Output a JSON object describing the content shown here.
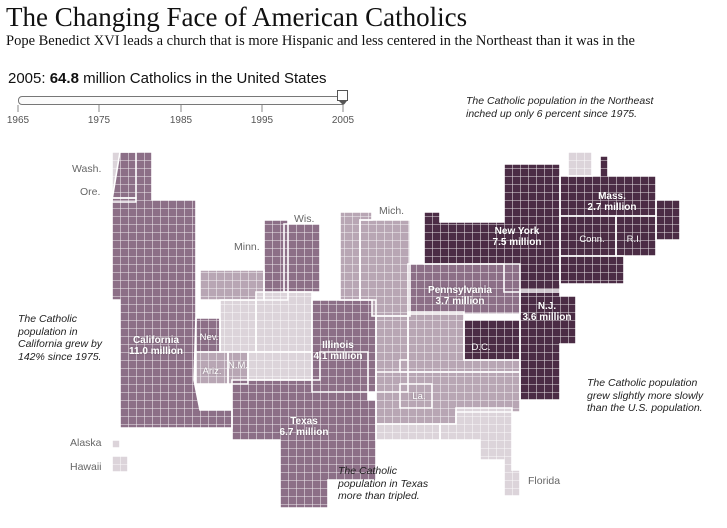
{
  "title": "The Changing Face of American Catholics",
  "subtitle": "Pope Benedict XVI leads a church that is more Hispanic and less centered in the Northeast than it was in the",
  "year_readout": {
    "prefix": "2005: ",
    "value": "64.8",
    "suffix": " million Catholics in the United States"
  },
  "timeline": {
    "ticks": [
      "1965",
      "1975",
      "1985",
      "1995",
      "2005"
    ],
    "selected": "2005"
  },
  "colors": {
    "dark": "#4b2c45",
    "medium": "#8c6f87",
    "light": "#b8a6b4",
    "pale": "#dcd4da",
    "grid": "#ffffff"
  },
  "state_labels": {
    "wash": "Wash.",
    "ore": "Ore.",
    "minn": "Minn.",
    "wis": "Wis.",
    "mich": "Mich.",
    "alaska": "Alaska",
    "hawaii": "Hawaii",
    "florida": "Florida"
  },
  "map_labels": {
    "california": [
      "California",
      "11.0 million"
    ],
    "texas": [
      "Texas",
      "6.7 million"
    ],
    "illinois": [
      "Illinois",
      "4.1 million"
    ],
    "newyork": [
      "New York",
      "7.5 million"
    ],
    "pennsylvania": [
      "Pennsylvania",
      "3.7 million"
    ],
    "nj": [
      "N.J.",
      "3.6 million"
    ],
    "mass": [
      "Mass.",
      "2.7 million"
    ],
    "conn": "Conn.",
    "ri": "R.I.",
    "dc": "D.C.",
    "nev": "Nev.",
    "ariz": "Ariz.",
    "nm": "N.M.",
    "la": "La."
  },
  "notes": {
    "northeast": "The Catholic population in the Northeast inched up only 6 percent since 1975.",
    "california": "The Catholic population in California grew by 142% since 1975.",
    "us": "The Catholic population grew slightly more slowly than the U.S. population.",
    "texas": "The Catholic population in Texas more than tripled."
  }
}
